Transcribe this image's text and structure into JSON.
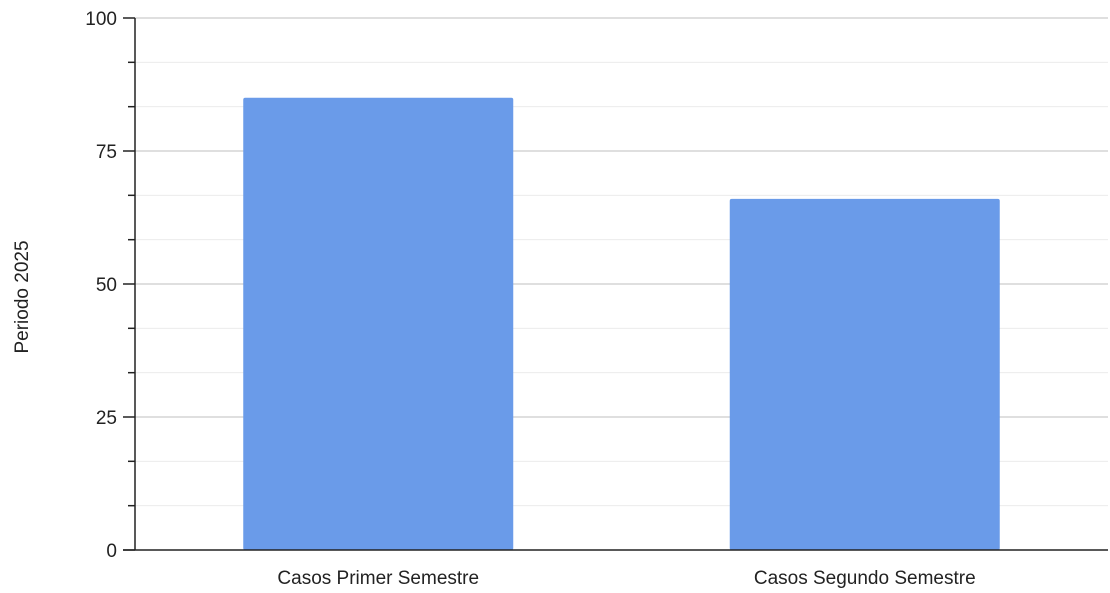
{
  "chart_data": {
    "type": "bar",
    "categories": [
      "Casos Primer Semestre",
      "Casos Segundo Semestre"
    ],
    "values": [
      85,
      66
    ],
    "ylabel": "Periodo 2025",
    "xlabel": "",
    "ylim": [
      0,
      100
    ],
    "major_ticks": [
      0,
      25,
      50,
      75,
      100
    ],
    "minor_ticks": [
      8.33,
      16.67,
      33.33,
      41.67,
      58.33,
      66.67,
      83.33,
      91.67
    ],
    "grid": true,
    "bar_color": "#6a9be9"
  }
}
